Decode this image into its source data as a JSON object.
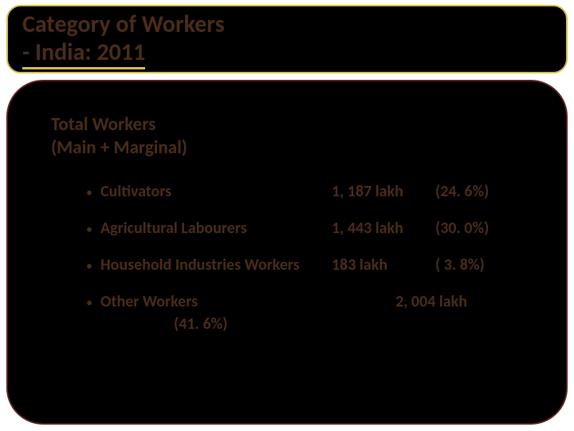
{
  "title": {
    "line1": "Category of Workers",
    "line2": "- India: 2011",
    "text_color": "#4a2c1a",
    "underline_color": "#d4c04a",
    "frame_bg": "#000000",
    "frame_border": "#d4c04a",
    "fontsize": 30
  },
  "content": {
    "frame_bg": "#000000",
    "frame_border": "#5b1f1f",
    "subhead_line1": "Total Workers",
    "subhead_line2": " (Main + Marginal)",
    "subhead_fontsize": 23,
    "text_color": "#4a2c1a",
    "bullet_char": "•",
    "item_fontsize": 20,
    "items": [
      {
        "label": "Cultivators",
        "value": "1, 187 lakh",
        "pct": "(24. 6%)"
      },
      {
        "label": "Agricultural Labourers",
        "value": "1, 443 lakh",
        "pct": "(30. 0%)"
      },
      {
        "label": "Household Industries Workers",
        "value": "183 lakh",
        "pct": "(  3. 8%)"
      }
    ],
    "other": {
      "label": "Other Workers",
      "value": "2, 004 lakh",
      "pct": "(41. 6%)"
    }
  }
}
